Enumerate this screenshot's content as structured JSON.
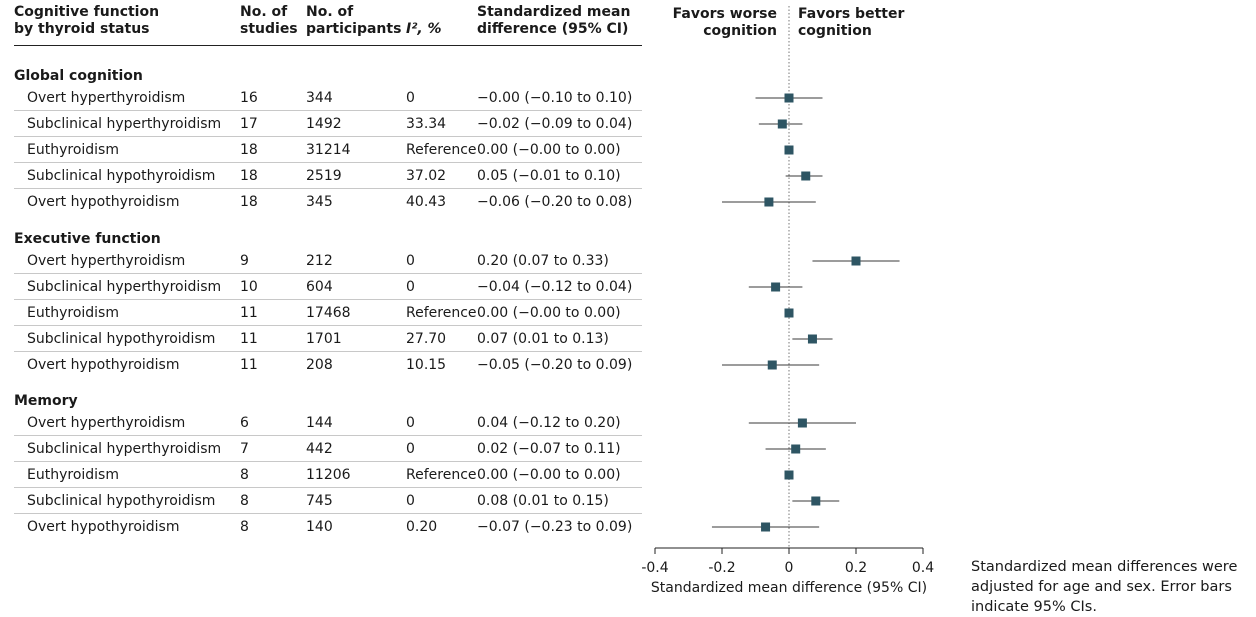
{
  "table": {
    "headers": {
      "cognitive_function": [
        "Cognitive function",
        "by thyroid status"
      ],
      "studies": [
        "No. of",
        "studies"
      ],
      "participants": [
        "No. of",
        "participants"
      ],
      "i2": "I², %",
      "smd": [
        "Standardized mean",
        "difference (95% CI)"
      ]
    },
    "groups": [
      {
        "name": "Global cognition",
        "rows": [
          {
            "status": "Overt hyperthyroidism",
            "studies": "16",
            "participants": "344",
            "i2": "0",
            "smd_text": "−0.00 (−0.10 to 0.10)"
          },
          {
            "status": "Subclinical hyperthyroidism",
            "studies": "17",
            "participants": "1492",
            "i2": "33.34",
            "smd_text": "−0.02 (−0.09 to 0.04)"
          },
          {
            "status": "Euthyroidism",
            "studies": "18",
            "participants": "31214",
            "i2": "Reference",
            "smd_text": "0.00 (−0.00 to 0.00)"
          },
          {
            "status": "Subclinical hypothyroidism",
            "studies": "18",
            "participants": "2519",
            "i2": "37.02",
            "smd_text": "0.05 (−0.01 to 0.10)"
          },
          {
            "status": "Overt hypothyroidism",
            "studies": "18",
            "participants": "345",
            "i2": "40.43",
            "smd_text": "−0.06 (−0.20 to 0.08)"
          }
        ]
      },
      {
        "name": "Executive function",
        "rows": [
          {
            "status": "Overt hyperthyroidism",
            "studies": "9",
            "participants": "212",
            "i2": "0",
            "smd_text": "0.20 (0.07 to 0.33)"
          },
          {
            "status": "Subclinical hyperthyroidism",
            "studies": "10",
            "participants": "604",
            "i2": "0",
            "smd_text": "−0.04 (−0.12 to 0.04)"
          },
          {
            "status": "Euthyroidism",
            "studies": "11",
            "participants": "17468",
            "i2": "Reference",
            "smd_text": "0.00 (−0.00 to 0.00)"
          },
          {
            "status": "Subclinical hypothyroidism",
            "studies": "11",
            "participants": "1701",
            "i2": "27.70",
            "smd_text": "0.07 (0.01 to 0.13)"
          },
          {
            "status": "Overt hypothyroidism",
            "studies": "11",
            "participants": "208",
            "i2": "10.15",
            "smd_text": "−0.05 (−0.20 to 0.09)"
          }
        ]
      },
      {
        "name": "Memory",
        "rows": [
          {
            "status": "Overt hyperthyroidism",
            "studies": "6",
            "participants": "144",
            "i2": "0",
            "smd_text": "0.04 (−0.12 to 0.20)"
          },
          {
            "status": "Subclinical hyperthyroidism",
            "studies": "7",
            "participants": "442",
            "i2": "0",
            "smd_text": "0.02 (−0.07 to 0.11)"
          },
          {
            "status": "Euthyroidism",
            "studies": "8",
            "participants": "11206",
            "i2": "Reference",
            "smd_text": "0.00 (−0.00 to 0.00)"
          },
          {
            "status": "Subclinical hypothyroidism",
            "studies": "8",
            "participants": "745",
            "i2": "0",
            "smd_text": "0.08 (0.01 to 0.15)"
          },
          {
            "status": "Overt hypothyroidism",
            "studies": "8",
            "participants": "140",
            "i2": "0.20",
            "smd_text": "−0.07 (−0.23 to 0.09)"
          }
        ]
      }
    ]
  },
  "chart_data": {
    "type": "scatter",
    "subtype": "forest-plot",
    "xlabel": "Standardized mean difference (95% CI)",
    "xlim": [
      -0.4,
      0.4
    ],
    "xticks": [
      -0.4,
      -0.2,
      0,
      0.2,
      0.4
    ],
    "xtick_labels": [
      "-0.4",
      "-0.2",
      "0",
      "0.2",
      "0.4"
    ],
    "reference_line": 0,
    "favors_left": [
      "Favors worse",
      "cognition"
    ],
    "favors_right": [
      "Favors better",
      "cognition"
    ],
    "marker_color": "#2e5563",
    "series": [
      {
        "name": "Global cognition",
        "points": [
          {
            "label": "Overt hyperthyroidism",
            "estimate": -0.0,
            "lower": -0.1,
            "upper": 0.1
          },
          {
            "label": "Subclinical hyperthyroidism",
            "estimate": -0.02,
            "lower": -0.09,
            "upper": 0.04
          },
          {
            "label": "Euthyroidism",
            "estimate": 0.0,
            "lower": -0.0,
            "upper": 0.0
          },
          {
            "label": "Subclinical hypothyroidism",
            "estimate": 0.05,
            "lower": -0.01,
            "upper": 0.1
          },
          {
            "label": "Overt hypothyroidism",
            "estimate": -0.06,
            "lower": -0.2,
            "upper": 0.08
          }
        ]
      },
      {
        "name": "Executive function",
        "points": [
          {
            "label": "Overt hyperthyroidism",
            "estimate": 0.2,
            "lower": 0.07,
            "upper": 0.33
          },
          {
            "label": "Subclinical hyperthyroidism",
            "estimate": -0.04,
            "lower": -0.12,
            "upper": 0.04
          },
          {
            "label": "Euthyroidism",
            "estimate": 0.0,
            "lower": -0.0,
            "upper": 0.0
          },
          {
            "label": "Subclinical hypothyroidism",
            "estimate": 0.07,
            "lower": 0.01,
            "upper": 0.13
          },
          {
            "label": "Overt hypothyroidism",
            "estimate": -0.05,
            "lower": -0.2,
            "upper": 0.09
          }
        ]
      },
      {
        "name": "Memory",
        "points": [
          {
            "label": "Overt hyperthyroidism",
            "estimate": 0.04,
            "lower": -0.12,
            "upper": 0.2
          },
          {
            "label": "Subclinical hyperthyroidism",
            "estimate": 0.02,
            "lower": -0.07,
            "upper": 0.11
          },
          {
            "label": "Euthyroidism",
            "estimate": 0.0,
            "lower": -0.0,
            "upper": 0.0
          },
          {
            "label": "Subclinical hypothyroidism",
            "estimate": 0.08,
            "lower": 0.01,
            "upper": 0.15
          },
          {
            "label": "Overt hypothyroidism",
            "estimate": -0.07,
            "lower": -0.23,
            "upper": 0.09
          }
        ]
      }
    ]
  },
  "note": "Standardized mean differences were adjusted for age and sex. Error bars indicate 95% CIs."
}
